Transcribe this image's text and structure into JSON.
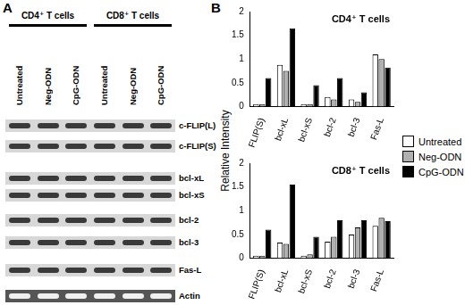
{
  "panel_labels": [
    "A",
    "B"
  ],
  "blot": {
    "groups": [
      "CD4⁺ T cells",
      "CD8⁺ T cells"
    ],
    "lanes": [
      "Untreated",
      "Neg-ODN",
      "CpG-ODN",
      "Untreated",
      "Neg-ODN",
      "CpG-ODN"
    ],
    "rows": [
      "c-FLIP(L)",
      "c-FLIP(S)",
      "bcl-xL",
      "bcl-xS",
      "bcl-2",
      "bcl-3",
      "Fas-L",
      "Actin"
    ]
  },
  "y_axis_title": "Relative Intensity",
  "chart_data": [
    {
      "type": "bar",
      "title": "CD4⁺ T cells",
      "categories": [
        "FLIP(S)",
        "bcl-xL",
        "bcl-xS",
        "bcl-2",
        "bcl-3",
        "Fas-L"
      ],
      "series": [
        {
          "name": "Untreated",
          "color": "#ffffff",
          "values": [
            0.05,
            0.88,
            0.05,
            0.2,
            0.15,
            1.1
          ]
        },
        {
          "name": "Neg-ODN",
          "color": "#b0b0b0",
          "values": [
            0.05,
            0.75,
            0.05,
            0.15,
            0.1,
            1.0
          ]
        },
        {
          "name": "CpG-ODN",
          "color": "#000000",
          "values": [
            0.6,
            1.65,
            0.45,
            0.6,
            0.3,
            0.82
          ]
        }
      ],
      "ylim": [
        0,
        2
      ],
      "yticks": [
        0,
        0.5,
        1,
        1.5,
        2
      ],
      "grid": false,
      "legend": "right"
    },
    {
      "type": "bar",
      "title": "CD8⁺ T cells",
      "categories": [
        "FLIP(S)",
        "bcl-xL",
        "bcl-xS",
        "bcl-2",
        "bcl-3",
        "Fas-L"
      ],
      "series": [
        {
          "name": "Untreated",
          "color": "#ffffff",
          "values": [
            0.05,
            0.33,
            0.05,
            0.35,
            0.5,
            0.68
          ]
        },
        {
          "name": "Neg-ODN",
          "color": "#b0b0b0",
          "values": [
            0.05,
            0.3,
            0.08,
            0.45,
            0.65,
            0.85
          ]
        },
        {
          "name": "CpG-ODN",
          "color": "#000000",
          "values": [
            0.6,
            1.55,
            0.45,
            0.8,
            0.8,
            0.78
          ]
        }
      ],
      "ylim": [
        0,
        2
      ],
      "yticks": [
        0,
        0.5,
        1,
        1.5,
        2
      ],
      "grid": false
    }
  ]
}
